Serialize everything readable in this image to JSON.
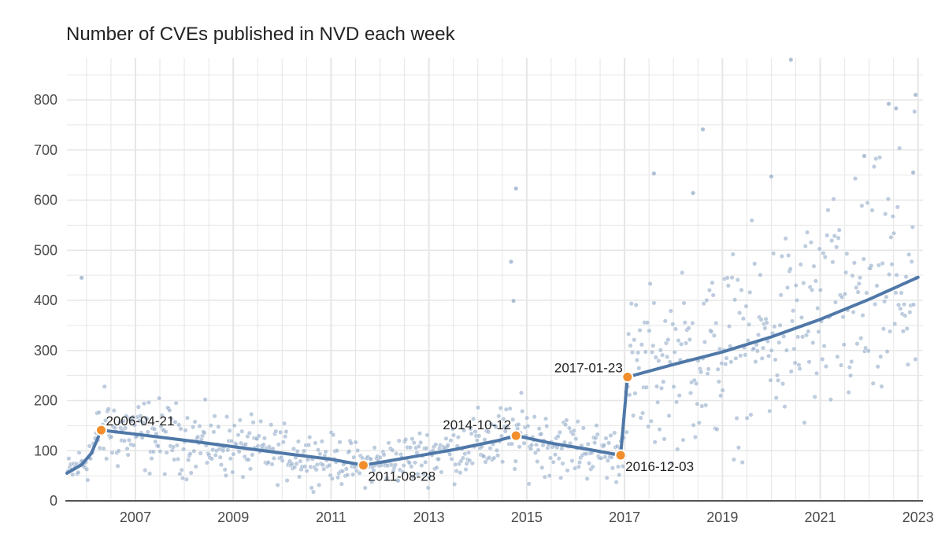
{
  "chart_data": {
    "type": "scatter",
    "title": "Number of CVEs published in NVD each week",
    "xlabel": "",
    "ylabel": "",
    "x_ticks": [
      "2007",
      "2009",
      "2011",
      "2013",
      "2015",
      "2017",
      "2019",
      "2021",
      "2023"
    ],
    "y_ticks": [
      "0",
      "100",
      "200",
      "300",
      "400",
      "500",
      "600",
      "700",
      "800"
    ],
    "xlim": [
      2005.6,
      2023.1
    ],
    "ylim": [
      0,
      880
    ],
    "grid": true,
    "trend_line": {
      "x": [
        2005.6,
        2005.9,
        2006.1,
        2006.3,
        2007.0,
        2008.0,
        2009.0,
        2010.0,
        2011.0,
        2011.66,
        2012.5,
        2013.5,
        2014.4,
        2014.78,
        2015.5,
        2016.3,
        2016.92,
        2017.06,
        2018.0,
        2019.0,
        2020.0,
        2021.0,
        2022.0,
        2023.0
      ],
      "y": [
        55,
        72,
        95,
        141,
        133,
        121,
        108,
        95,
        83,
        71,
        85,
        102,
        120,
        130,
        115,
        102,
        91,
        247,
        272,
        297,
        327,
        362,
        402,
        446
      ]
    },
    "breakpoints": [
      {
        "label": "2006-04-21",
        "x": 2006.3,
        "y": 141
      },
      {
        "label": "2011-08-28",
        "x": 2011.66,
        "y": 71
      },
      {
        "label": "2014-10-12",
        "x": 2014.78,
        "y": 130
      },
      {
        "label": "2016-12-03",
        "x": 2016.92,
        "y": 91
      },
      {
        "label": "2017-01-23",
        "x": 2017.06,
        "y": 247
      }
    ],
    "outliers": [
      {
        "x": 2005.9,
        "y": 445
      },
      {
        "x": 2014.68,
        "y": 477
      },
      {
        "x": 2014.78,
        "y": 623
      },
      {
        "x": 2014.73,
        "y": 399
      },
      {
        "x": 2017.6,
        "y": 653
      },
      {
        "x": 2018.4,
        "y": 614
      },
      {
        "x": 2018.6,
        "y": 741
      },
      {
        "x": 2020.0,
        "y": 647
      },
      {
        "x": 2020.4,
        "y": 880
      },
      {
        "x": 2021.9,
        "y": 688
      },
      {
        "x": 2022.4,
        "y": 792
      },
      {
        "x": 2022.55,
        "y": 783
      },
      {
        "x": 2022.95,
        "y": 810
      },
      {
        "x": 2022.9,
        "y": 655
      }
    ],
    "colors": {
      "points": "#9ab0cc",
      "trend": "#4f78a8",
      "breakpoint": "#f28e2b",
      "grid": "#e6e6e6",
      "axis": "#555555"
    }
  }
}
